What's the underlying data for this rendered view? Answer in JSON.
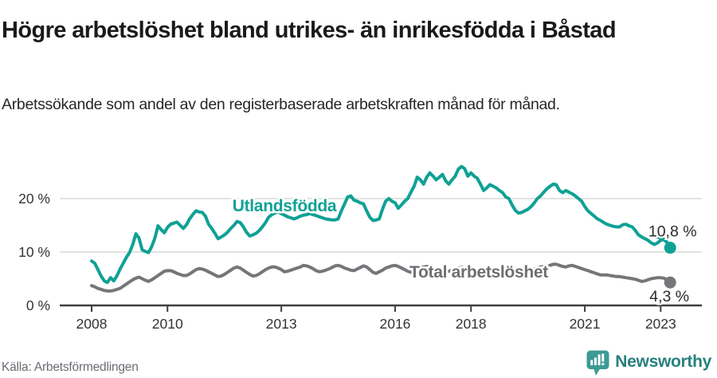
{
  "header": {
    "title": "Högre arbetslöshet bland utrikes- än inrikesfödda i Båstad",
    "subtitle": "Arbetssökande som andel av den registerbaserade arbetskraften månad för månad."
  },
  "footer": {
    "source": "Källa: Arbetsförmedlingen",
    "brand_name": "Newsworthy",
    "brand_icon": "newsworthy-barchart-pin-icon"
  },
  "colors": {
    "foreign_series": "#0fa195",
    "total_series": "#76767a",
    "total_label": "#6e6e73",
    "grid": "#d9d9d9",
    "axis": "#3f3f3f",
    "tick_text": "#333333",
    "value_text": "#2b2b2b",
    "brand": "#27807d",
    "brand_icon_fill": "#3d9a94"
  },
  "chart_data": {
    "type": "line",
    "unit": "%",
    "frequency": "monthly",
    "start": "2008-01",
    "end": "2023-04",
    "grid": true,
    "legend_position": "inline-labels",
    "x_tick_years": [
      2008,
      2010,
      2013,
      2016,
      2018,
      2021,
      2023
    ],
    "x_tick_labels": [
      "2008",
      "2010",
      "2013",
      "2016",
      "2018",
      "2021",
      "2023"
    ],
    "y_ticks": [
      {
        "value": 0,
        "label": "0 %"
      },
      {
        "value": 10,
        "label": "10 %"
      },
      {
        "value": 20,
        "label": "20 %"
      }
    ],
    "ylim": [
      0,
      27
    ],
    "series": [
      {
        "name": "Utlandsfödda",
        "end_label": "10,8 %",
        "last_value": 10.8,
        "values": [
          8.3,
          7.9,
          6.7,
          5.5,
          4.6,
          4.3,
          5.2,
          4.6,
          5.5,
          6.8,
          7.9,
          9.0,
          9.9,
          11.4,
          13.4,
          12.6,
          10.4,
          10.1,
          9.9,
          11.0,
          12.6,
          14.9,
          14.2,
          13.6,
          14.6,
          15.2,
          15.4,
          15.6,
          15.0,
          14.4,
          15.1,
          16.2,
          17.0,
          17.7,
          17.5,
          17.4,
          16.7,
          15.2,
          14.4,
          13.5,
          12.5,
          12.8,
          13.2,
          13.7,
          14.4,
          15.0,
          15.7,
          15.5,
          14.7,
          13.7,
          13.0,
          13.2,
          13.5,
          14.0,
          14.7,
          15.5,
          16.5,
          17.0,
          17.3,
          17.5,
          17.2,
          16.9,
          16.6,
          16.4,
          16.2,
          16.4,
          16.7,
          16.9,
          17.0,
          17.2,
          17.0,
          16.8,
          16.6,
          16.4,
          16.2,
          16.1,
          16.0,
          16.0,
          16.2,
          17.7,
          19.0,
          20.3,
          20.5,
          19.7,
          19.5,
          19.2,
          19.0,
          17.7,
          16.5,
          15.9,
          16.0,
          16.2,
          18.0,
          19.5,
          20.0,
          19.5,
          19.2,
          18.2,
          18.8,
          19.5,
          20.0,
          21.2,
          22.3,
          24.0,
          23.5,
          22.7,
          24.0,
          24.8,
          24.2,
          23.5,
          24.0,
          24.5,
          23.3,
          22.7,
          23.5,
          24.2,
          25.5,
          26.0,
          25.6,
          24.2,
          24.8,
          24.2,
          23.8,
          22.7,
          21.5,
          22.0,
          22.6,
          22.3,
          22.0,
          21.5,
          21.1,
          20.3,
          20.0,
          18.8,
          17.8,
          17.3,
          17.4,
          17.7,
          18.0,
          18.5,
          19.2,
          20.0,
          20.5,
          21.2,
          21.8,
          22.3,
          22.7,
          22.6,
          21.5,
          21.1,
          21.5,
          21.2,
          20.9,
          20.5,
          20.0,
          19.5,
          18.5,
          17.7,
          17.2,
          16.7,
          16.2,
          15.9,
          15.5,
          15.2,
          15.0,
          14.8,
          14.7,
          14.7,
          15.1,
          15.2,
          14.9,
          14.7,
          14.0,
          13.2,
          12.8,
          12.5,
          12.2,
          11.7,
          11.4,
          11.7,
          12.2,
          12.4,
          11.8,
          10.8
        ]
      },
      {
        "name": "Total arbetslöshet",
        "end_label": "4,3 %",
        "last_value": 4.3,
        "values": [
          3.7,
          3.5,
          3.2,
          3.0,
          2.8,
          2.7,
          2.7,
          2.8,
          3.0,
          3.2,
          3.6,
          4.0,
          4.4,
          4.8,
          5.1,
          5.3,
          5.0,
          4.7,
          4.5,
          4.8,
          5.2,
          5.6,
          6.0,
          6.4,
          6.5,
          6.5,
          6.3,
          6.0,
          5.8,
          5.6,
          5.6,
          5.9,
          6.3,
          6.7,
          6.9,
          6.8,
          6.6,
          6.3,
          6.0,
          5.7,
          5.4,
          5.5,
          5.8,
          6.2,
          6.6,
          7.0,
          7.2,
          7.0,
          6.6,
          6.2,
          5.8,
          5.5,
          5.6,
          5.9,
          6.3,
          6.7,
          7.0,
          7.2,
          7.2,
          7.0,
          6.7,
          6.3,
          6.4,
          6.6,
          6.8,
          7.0,
          7.2,
          7.5,
          7.4,
          7.2,
          6.9,
          6.5,
          6.3,
          6.4,
          6.6,
          6.8,
          7.1,
          7.4,
          7.5,
          7.3,
          7.0,
          6.8,
          6.6,
          6.5,
          6.8,
          7.1,
          7.4,
          7.2,
          6.7,
          6.2,
          6.0,
          6.3,
          6.6,
          7.0,
          7.2,
          7.4,
          7.5,
          7.3,
          7.0,
          6.7,
          6.4,
          6.2,
          6.4,
          6.7,
          7.0,
          7.2,
          7.3,
          7.2,
          7.0,
          6.8,
          6.6,
          6.4,
          6.3,
          6.4,
          6.6,
          6.8,
          7.0,
          7.1,
          7.0,
          6.8,
          6.6,
          6.4,
          6.2,
          6.0,
          5.9,
          6.0,
          6.2,
          6.4,
          6.6,
          6.7,
          6.6,
          6.5,
          6.4,
          6.2,
          6.1,
          6.0,
          6.1,
          6.2,
          6.4,
          6.6,
          6.8,
          7.0,
          7.2,
          7.3,
          7.4,
          7.5,
          7.7,
          7.7,
          7.5,
          7.3,
          7.2,
          7.4,
          7.5,
          7.3,
          7.1,
          6.9,
          6.7,
          6.5,
          6.3,
          6.1,
          5.9,
          5.7,
          5.7,
          5.7,
          5.6,
          5.5,
          5.4,
          5.4,
          5.3,
          5.2,
          5.1,
          5.0,
          4.9,
          4.7,
          4.5,
          4.6,
          4.8,
          5.0,
          5.1,
          5.2,
          5.2,
          5.1,
          4.8,
          4.3
        ]
      }
    ]
  }
}
